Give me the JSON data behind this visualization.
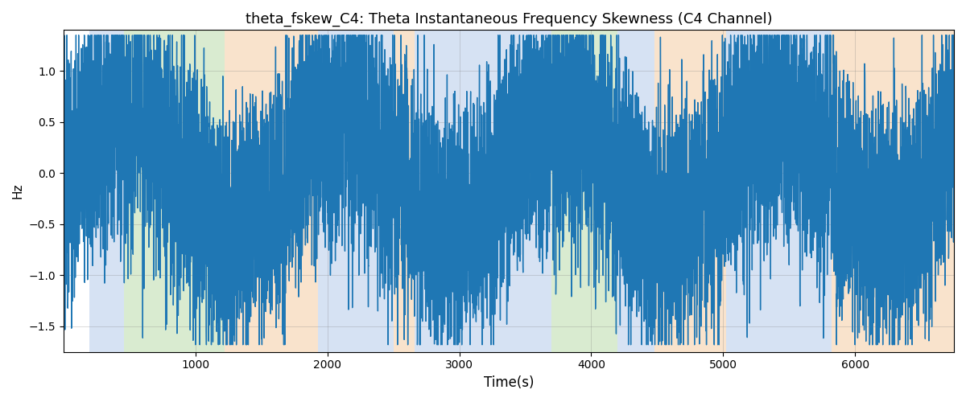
{
  "title": "theta_fskew_C4: Theta Instantaneous Frequency Skewness (C4 Channel)",
  "xlabel": "Time(s)",
  "ylabel": "Hz",
  "xlim": [
    0,
    6750
  ],
  "ylim": [
    -1.75,
    1.4
  ],
  "yticks": [
    -1.5,
    -1.0,
    -0.5,
    0.0,
    0.5,
    1.0
  ],
  "xticks": [
    1000,
    2000,
    3000,
    4000,
    5000,
    6000
  ],
  "line_color": "#1f77b4",
  "line_width": 1.0,
  "bg_regions": [
    {
      "xmin": 195,
      "xmax": 460,
      "color": "#aec6e8",
      "alpha": 0.5
    },
    {
      "xmin": 460,
      "xmax": 1220,
      "color": "#b5d9a3",
      "alpha": 0.5
    },
    {
      "xmin": 1220,
      "xmax": 1930,
      "color": "#f5c99a",
      "alpha": 0.5
    },
    {
      "xmin": 1930,
      "xmax": 2500,
      "color": "#aec6e8",
      "alpha": 0.5
    },
    {
      "xmin": 2500,
      "xmax": 2660,
      "color": "#f5c99a",
      "alpha": 0.5
    },
    {
      "xmin": 2660,
      "xmax": 3700,
      "color": "#aec6e8",
      "alpha": 0.5
    },
    {
      "xmin": 3700,
      "xmax": 4200,
      "color": "#b5d9a3",
      "alpha": 0.5
    },
    {
      "xmin": 4200,
      "xmax": 4480,
      "color": "#aec6e8",
      "alpha": 0.5
    },
    {
      "xmin": 4480,
      "xmax": 5020,
      "color": "#f5c99a",
      "alpha": 0.5
    },
    {
      "xmin": 5020,
      "xmax": 5820,
      "color": "#aec6e8",
      "alpha": 0.5
    },
    {
      "xmin": 5820,
      "xmax": 6750,
      "color": "#f5c99a",
      "alpha": 0.5
    }
  ],
  "n_points": 6700
}
